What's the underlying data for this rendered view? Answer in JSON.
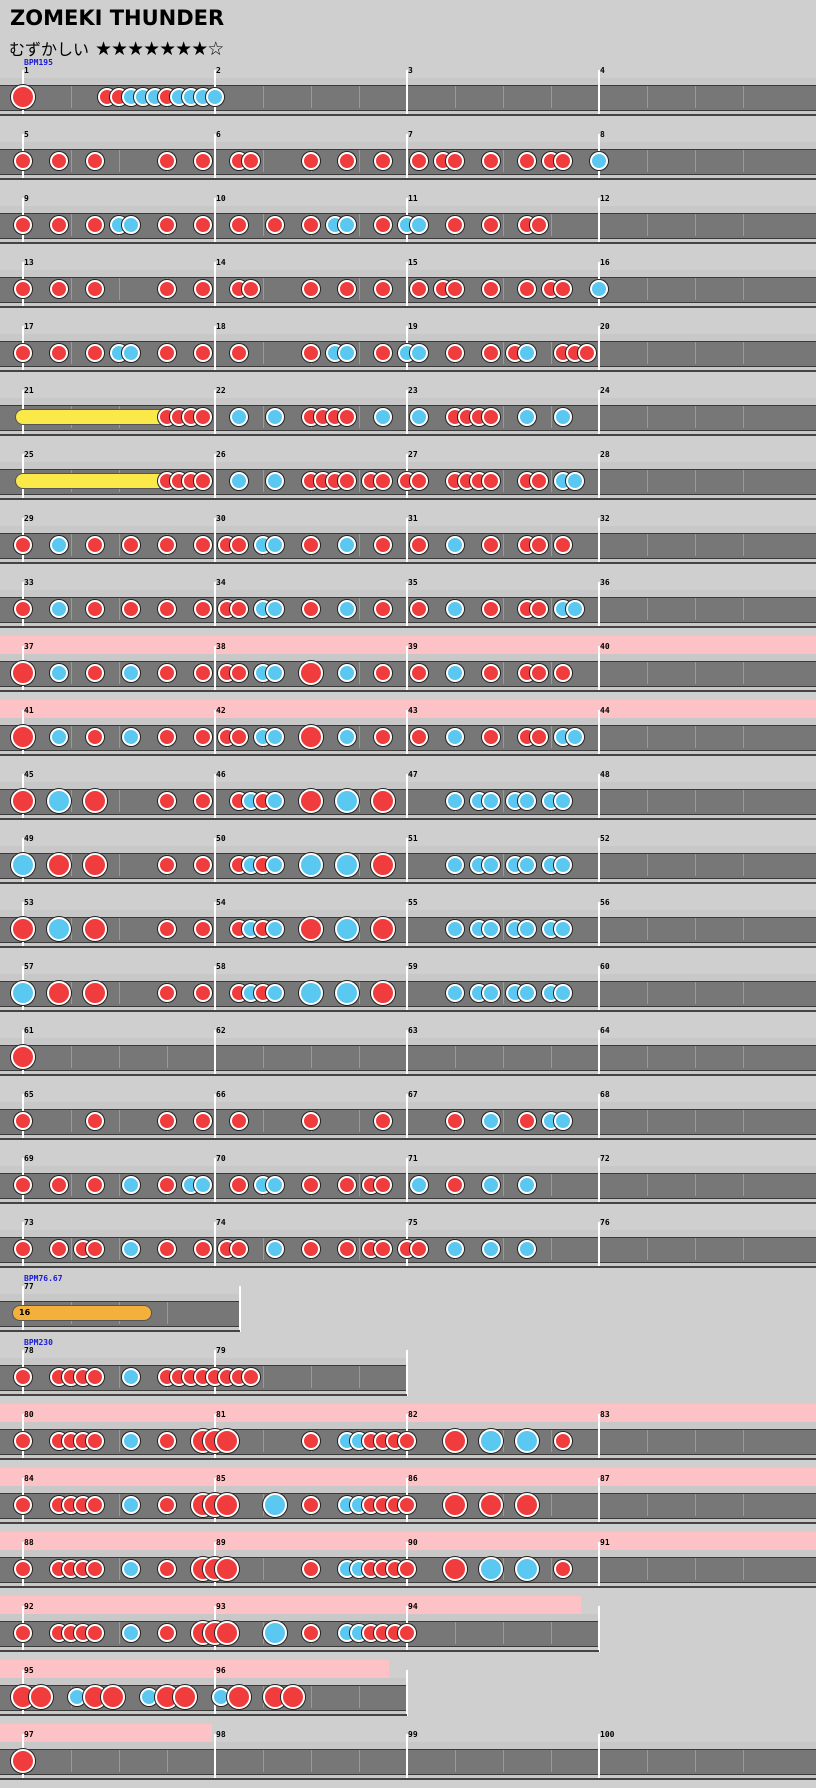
{
  "header": {
    "title": "ZOMEKI THUNDER",
    "difficulty_label": "むずかしい",
    "stars": "★★★★★★★☆",
    "level": 7,
    "level_max": 8
  },
  "chart": {
    "notes_per_measure": 16,
    "rows": [
      {
        "bpm": "BPM195",
        "gogo": false,
        "measures": [
          {
            "n": "1",
            "notes": [
              [
                0,
                "D"
              ],
              [
                7,
                "d"
              ],
              [
                8,
                "d"
              ],
              [
                9,
                "k"
              ],
              [
                10,
                "k"
              ],
              [
                11,
                "k"
              ],
              [
                12,
                "d"
              ],
              [
                13,
                "k"
              ],
              [
                14,
                "k"
              ],
              [
                15,
                "k"
              ],
              [
                16,
                "k"
              ]
            ]
          },
          {
            "n": "2",
            "notes": []
          },
          {
            "n": "3",
            "notes": []
          },
          {
            "n": "4",
            "notes": []
          }
        ]
      },
      {
        "measures": [
          {
            "n": "5"
          },
          {
            "n": "6"
          },
          {
            "n": "7"
          },
          {
            "n": "8"
          }
        ]
      },
      {
        "measures": [
          {
            "n": "9"
          },
          {
            "n": "10"
          },
          {
            "n": "11"
          },
          {
            "n": "12"
          }
        ]
      },
      {
        "measures": [
          {
            "n": "13"
          },
          {
            "n": "14"
          },
          {
            "n": "15"
          },
          {
            "n": "16"
          }
        ]
      },
      {
        "measures": [
          {
            "n": "17"
          },
          {
            "n": "18"
          },
          {
            "n": "19"
          },
          {
            "n": "20"
          }
        ]
      },
      {
        "measures": [
          {
            "n": "21"
          },
          {
            "n": "22"
          },
          {
            "n": "23"
          },
          {
            "n": "24"
          }
        ]
      },
      {
        "measures": [
          {
            "n": "25"
          },
          {
            "n": "26"
          },
          {
            "n": "27"
          },
          {
            "n": "28"
          }
        ]
      },
      {
        "measures": [
          {
            "n": "29"
          },
          {
            "n": "30"
          },
          {
            "n": "31"
          },
          {
            "n": "32"
          }
        ]
      },
      {
        "measures": [
          {
            "n": "33"
          },
          {
            "n": "34"
          },
          {
            "n": "35"
          },
          {
            "n": "36"
          }
        ]
      },
      {
        "measures": [
          {
            "n": "37"
          },
          {
            "n": "38"
          },
          {
            "n": "39"
          },
          {
            "n": "40"
          }
        ]
      },
      {
        "measures": [
          {
            "n": "41"
          },
          {
            "n": "42"
          },
          {
            "n": "43"
          },
          {
            "n": "44"
          }
        ]
      },
      {
        "measures": [
          {
            "n": "45"
          },
          {
            "n": "46"
          },
          {
            "n": "47"
          },
          {
            "n": "48"
          }
        ]
      },
      {
        "measures": [
          {
            "n": "49"
          },
          {
            "n": "50"
          },
          {
            "n": "51"
          },
          {
            "n": "52"
          }
        ]
      },
      {
        "measures": [
          {
            "n": "53"
          },
          {
            "n": "54"
          },
          {
            "n": "55"
          },
          {
            "n": "56"
          }
        ]
      },
      {
        "measures": [
          {
            "n": "57"
          },
          {
            "n": "58"
          },
          {
            "n": "59"
          },
          {
            "n": "60"
          }
        ]
      },
      {
        "measures": [
          {
            "n": "61"
          },
          {
            "n": "62"
          },
          {
            "n": "63"
          },
          {
            "n": "64"
          }
        ]
      },
      {
        "measures": [
          {
            "n": "65"
          },
          {
            "n": "66"
          },
          {
            "n": "67"
          },
          {
            "n": "68"
          }
        ]
      },
      {
        "measures": [
          {
            "n": "69"
          },
          {
            "n": "70"
          },
          {
            "n": "71"
          },
          {
            "n": "72"
          }
        ]
      },
      {
        "measures": [
          {
            "n": "73"
          },
          {
            "n": "74"
          },
          {
            "n": "75"
          },
          {
            "n": "76"
          }
        ]
      },
      {
        "bpm": "BPM76.67",
        "measures": [
          {
            "n": "77"
          }
        ]
      },
      {
        "bpm": "BPM230",
        "measures": [
          {
            "n": "78"
          },
          {
            "n": "79"
          }
        ]
      },
      {
        "measures": [
          {
            "n": "80"
          },
          {
            "n": "81"
          },
          {
            "n": "82"
          },
          {
            "n": "83"
          }
        ]
      },
      {
        "measures": [
          {
            "n": "84"
          },
          {
            "n": "85"
          },
          {
            "n": "86"
          },
          {
            "n": "87"
          }
        ]
      },
      {
        "measures": [
          {
            "n": "88"
          },
          {
            "n": "89"
          },
          {
            "n": "90"
          },
          {
            "n": "91"
          }
        ]
      },
      {
        "measures": [
          {
            "n": "92"
          },
          {
            "n": "93"
          },
          {
            "n": "94"
          }
        ]
      },
      {
        "measures": [
          {
            "n": "95"
          },
          {
            "n": "96"
          }
        ]
      },
      {
        "measures": [
          {
            "n": "97"
          },
          {
            "n": "98"
          },
          {
            "n": "99"
          },
          {
            "n": "100"
          }
        ]
      }
    ],
    "balloon_hits": "16"
  }
}
